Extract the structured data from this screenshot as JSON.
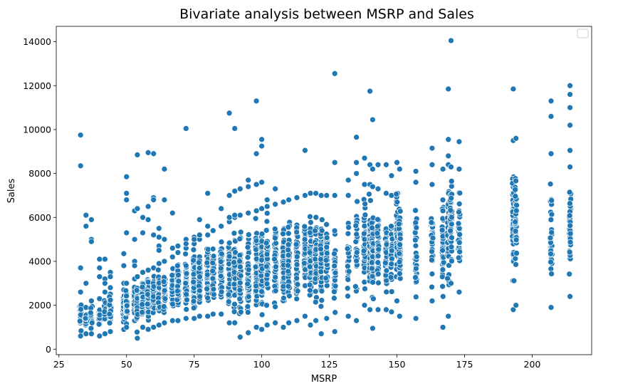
{
  "chart_data": {
    "type": "scatter",
    "title": "Bivariate analysis between MSRP and Sales",
    "xlabel": "MSRP",
    "ylabel": "Sales",
    "xlim": [
      24,
      222
    ],
    "ylim": [
      -250,
      14700
    ],
    "xticks": [
      25,
      50,
      75,
      100,
      125,
      150,
      175,
      200
    ],
    "yticks": [
      0,
      2000,
      4000,
      6000,
      8000,
      10000,
      12000,
      14000
    ],
    "grid": false,
    "legend": "top-right",
    "marker_color": "#1f77b4",
    "columns": [
      {
        "x": 33,
        "min": 600,
        "max": 2600,
        "n": 40,
        "extra": [
          9750,
          8350,
          3700
        ]
      },
      {
        "x": 35,
        "min": 700,
        "max": 1900,
        "n": 22,
        "extra": [
          6100,
          5600,
          3000
        ]
      },
      {
        "x": 37,
        "min": 700,
        "max": 2200,
        "n": 20,
        "extra": [
          5900,
          5000,
          4900
        ]
      },
      {
        "x": 40,
        "min": 600,
        "max": 2300,
        "n": 25,
        "extra": [
          4100,
          3700,
          3300
        ]
      },
      {
        "x": 42,
        "min": 700,
        "max": 2600,
        "n": 25,
        "extra": [
          4100,
          3200,
          3000
        ]
      },
      {
        "x": 44,
        "min": 800,
        "max": 2800,
        "n": 25,
        "extra": [
          3500,
          3300
        ]
      },
      {
        "x": 49,
        "min": 900,
        "max": 2700,
        "n": 45,
        "extra": [
          4350,
          3800,
          3000
        ]
      },
      {
        "x": 50,
        "min": 1000,
        "max": 3000,
        "n": 40,
        "extra": [
          7850,
          7100,
          6800,
          5300
        ]
      },
      {
        "x": 53,
        "min": 1300,
        "max": 3200,
        "n": 45,
        "extra": [
          4000,
          3800,
          5000,
          6300
        ]
      },
      {
        "x": 54,
        "min": 500,
        "max": 3300,
        "n": 45,
        "extra": [
          8850,
          6400
        ]
      },
      {
        "x": 56,
        "min": 1000,
        "max": 3500,
        "n": 50,
        "extra": [
          6000,
          5300
        ]
      },
      {
        "x": 58,
        "min": 900,
        "max": 3600,
        "n": 55,
        "extra": [
          8950,
          6500,
          5900
        ]
      },
      {
        "x": 60,
        "min": 1000,
        "max": 3700,
        "n": 55,
        "extra": [
          8900,
          6900,
          6800,
          5200
        ]
      },
      {
        "x": 62,
        "min": 1100,
        "max": 3900,
        "n": 55,
        "extra": [
          5500,
          5100,
          4700,
          4500
        ]
      },
      {
        "x": 64,
        "min": 1200,
        "max": 4000,
        "n": 55,
        "extra": [
          8200,
          6800,
          5000
        ]
      },
      {
        "x": 67,
        "min": 1300,
        "max": 4200,
        "n": 60,
        "extra": [
          4600,
          6200
        ]
      },
      {
        "x": 69,
        "min": 1300,
        "max": 4400,
        "n": 60,
        "extra": [
          4700
        ]
      },
      {
        "x": 72,
        "min": 1400,
        "max": 4600,
        "n": 60,
        "extra": [
          10050,
          5000,
          4800
        ]
      },
      {
        "x": 75,
        "min": 1400,
        "max": 4800,
        "n": 60,
        "extra": [
          5100,
          5000
        ]
      },
      {
        "x": 77,
        "min": 1500,
        "max": 5000,
        "n": 60,
        "extra": [
          5900,
          5200
        ]
      },
      {
        "x": 80,
        "min": 1500,
        "max": 5200,
        "n": 60,
        "extra": [
          7100,
          5600
        ]
      },
      {
        "x": 82,
        "min": 1600,
        "max": 5400,
        "n": 60,
        "extra": []
      },
      {
        "x": 85,
        "min": 1600,
        "max": 5600,
        "n": 60,
        "extra": [
          6400
        ]
      },
      {
        "x": 88,
        "min": 1200,
        "max": 5800,
        "n": 60,
        "extra": [
          10750,
          7000,
          6000
        ]
      },
      {
        "x": 90,
        "min": 1200,
        "max": 6000,
        "n": 60,
        "extra": [
          10050,
          7200,
          6100
        ]
      },
      {
        "x": 92,
        "min": 550,
        "max": 6100,
        "n": 60,
        "extra": [
          7300
        ]
      },
      {
        "x": 95,
        "min": 750,
        "max": 6200,
        "n": 60,
        "extra": [
          7700,
          7400
        ]
      },
      {
        "x": 98,
        "min": 1000,
        "max": 6300,
        "n": 65,
        "extra": [
          11300,
          8900,
          7500
        ]
      },
      {
        "x": 100,
        "min": 900,
        "max": 6400,
        "n": 65,
        "extra": [
          9550,
          9250,
          7600
        ]
      },
      {
        "x": 102,
        "min": 1100,
        "max": 6500,
        "n": 60,
        "extra": [
          6800
        ]
      },
      {
        "x": 105,
        "min": 1200,
        "max": 6600,
        "n": 60,
        "extra": [
          7300
        ]
      },
      {
        "x": 108,
        "min": 1000,
        "max": 6700,
        "n": 55,
        "extra": []
      },
      {
        "x": 110,
        "min": 1200,
        "max": 6800,
        "n": 55,
        "extra": []
      },
      {
        "x": 113,
        "min": 1300,
        "max": 6900,
        "n": 50,
        "extra": []
      },
      {
        "x": 116,
        "min": 1500,
        "max": 7000,
        "n": 55,
        "extra": [
          9050
        ]
      },
      {
        "x": 118,
        "min": 1100,
        "max": 7100,
        "n": 55,
        "extra": []
      },
      {
        "x": 120,
        "min": 1300,
        "max": 7100,
        "n": 50,
        "extra": []
      },
      {
        "x": 122,
        "min": 700,
        "max": 7000,
        "n": 45,
        "extra": []
      },
      {
        "x": 124,
        "min": 1400,
        "max": 7000,
        "n": 40,
        "extra": []
      },
      {
        "x": 127,
        "min": 800,
        "max": 7000,
        "n": 35,
        "extra": [
          12550,
          8500
        ]
      },
      {
        "x": 132,
        "min": 1500,
        "max": 7000,
        "n": 30,
        "extra": [
          7700
        ]
      },
      {
        "x": 135,
        "min": 1300,
        "max": 8000,
        "n": 35,
        "extra": [
          9650,
          8500
        ]
      },
      {
        "x": 138,
        "min": 2000,
        "max": 7500,
        "n": 40,
        "extra": [
          8700
        ]
      },
      {
        "x": 140,
        "min": 1800,
        "max": 7500,
        "n": 45,
        "extra": [
          11750,
          8400
        ]
      },
      {
        "x": 141,
        "min": 950,
        "max": 7400,
        "n": 45,
        "extra": [
          10450,
          8200
        ]
      },
      {
        "x": 143,
        "min": 1800,
        "max": 7300,
        "n": 40,
        "extra": [
          8400
        ]
      },
      {
        "x": 146,
        "min": 1800,
        "max": 7100,
        "n": 40,
        "extra": [
          8400
        ]
      },
      {
        "x": 148,
        "min": 1700,
        "max": 7000,
        "n": 40,
        "extra": [
          7900
        ]
      },
      {
        "x": 150,
        "min": 2200,
        "max": 8500,
        "n": 45,
        "extra": []
      },
      {
        "x": 151,
        "min": 1500,
        "max": 8200,
        "n": 40,
        "extra": []
      },
      {
        "x": 157,
        "min": 1400,
        "max": 7600,
        "n": 35,
        "extra": [
          8100
        ]
      },
      {
        "x": 163,
        "min": 2200,
        "max": 7500,
        "n": 35,
        "extra": [
          9150,
          8400
        ]
      },
      {
        "x": 167,
        "min": 1000,
        "max": 8200,
        "n": 45,
        "extra": []
      },
      {
        "x": 169,
        "min": 1500,
        "max": 8800,
        "n": 50,
        "extra": [
          11850,
          9550,
          8400
        ]
      },
      {
        "x": 170,
        "min": 3000,
        "max": 8300,
        "n": 50,
        "extra": [
          14050
        ]
      },
      {
        "x": 173,
        "min": 2600,
        "max": 8200,
        "n": 40,
        "extra": [
          9450
        ]
      },
      {
        "x": 193,
        "min": 1800,
        "max": 9500,
        "n": 45,
        "extra": [
          11850
        ]
      },
      {
        "x": 194,
        "min": 2000,
        "max": 9600,
        "n": 35,
        "extra": []
      },
      {
        "x": 207,
        "min": 1900,
        "max": 8900,
        "n": 35,
        "extra": [
          11300,
          10600
        ]
      },
      {
        "x": 214,
        "min": 2400,
        "max": 8300,
        "n": 40,
        "extra": [
          12000,
          11600,
          11000,
          10200,
          9050
        ]
      }
    ]
  }
}
